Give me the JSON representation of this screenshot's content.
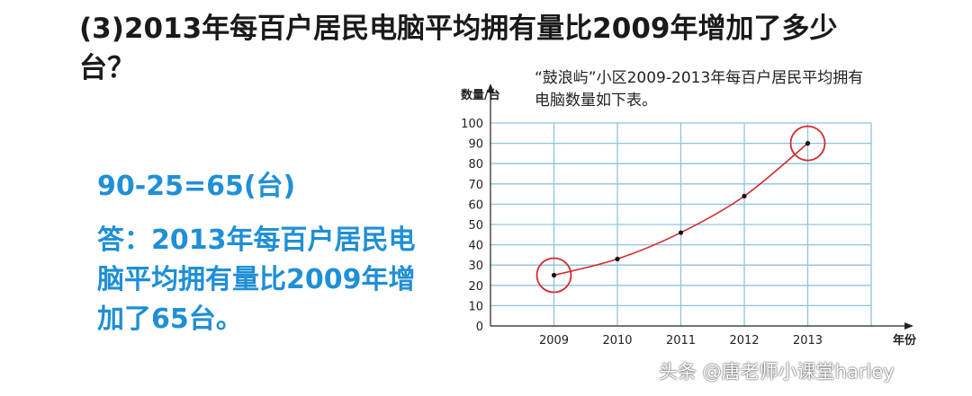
{
  "question": "(3)2013年每百户居民电脑平均拥有量比2009年增加了多少台？",
  "formula": "90-25=65(台)",
  "answer": "答：2013年每百户居民电脑平均拥有量比2009年增加了65台。",
  "watermark": "头条 @唐老师小课堂harley",
  "chart_data": {
    "type": "line",
    "title": "“鼓浪屿”小区2009-2013年每百户居民平均拥有电脑数量如下表。",
    "ylabel": "数量/台",
    "xlabel": "年份",
    "categories": [
      "2009",
      "2010",
      "2011",
      "2012",
      "2013"
    ],
    "values": [
      25,
      33,
      46,
      64,
      90
    ],
    "ylim": [
      0,
      100
    ],
    "yticks": [
      0,
      10,
      20,
      30,
      40,
      50,
      60,
      70,
      80,
      90,
      100
    ],
    "grid": true,
    "highlighted_categories": [
      "2009",
      "2013"
    ],
    "colors": {
      "line": "#d42a2a",
      "circle": "#d42a2a",
      "grid": "#8cc3e3",
      "answer_text": "#1f8fd6"
    }
  }
}
